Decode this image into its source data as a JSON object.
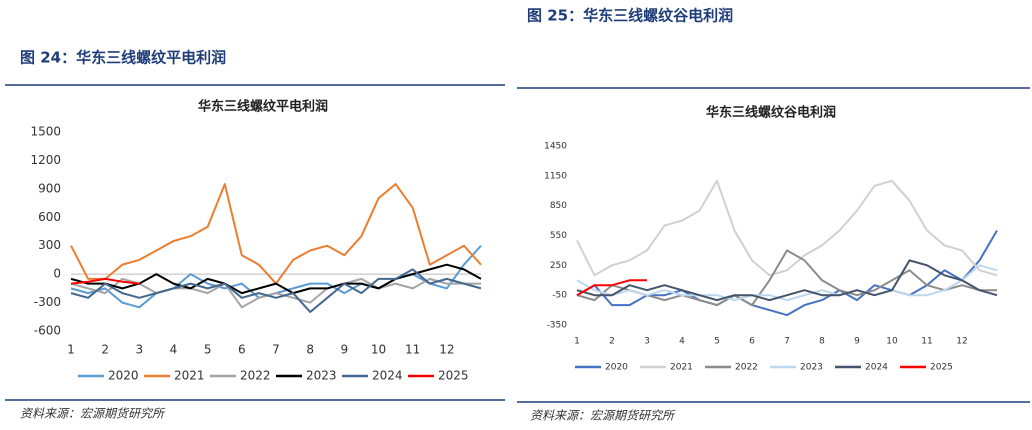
{
  "figures": [
    {
      "caption": "图 24：华东三线螺纹平电利润",
      "source": "资料来源：宏源期货研究所"
    },
    {
      "caption": "图 25：华东三线螺纹谷电利润",
      "source": "资料来源：宏源期货研究所"
    }
  ],
  "chart_data": [
    {
      "type": "line",
      "title": "华东三线螺纹平电利润",
      "x": [
        1,
        1.5,
        2,
        2.5,
        3,
        3.5,
        4,
        4.5,
        5,
        5.5,
        6,
        6.5,
        7,
        7.5,
        8,
        8.5,
        9,
        9.5,
        10,
        10.5,
        11,
        11.5,
        12,
        12.5,
        13
      ],
      "xlim": [
        1,
        13
      ],
      "xticks": [
        1,
        2,
        3,
        4,
        5,
        6,
        7,
        8,
        9,
        10,
        11,
        12
      ],
      "ylim": [
        -600,
        1500
      ],
      "yticks": [
        1500,
        1200,
        900,
        600,
        300,
        0,
        -300,
        -600
      ],
      "series": [
        {
          "name": "2020",
          "color": "#5b9bd5",
          "values": [
            -150,
            -200,
            -150,
            -300,
            -350,
            -200,
            -150,
            0,
            -100,
            -150,
            -100,
            -250,
            -200,
            -150,
            -100,
            -100,
            -200,
            -100,
            -150,
            -50,
            0,
            -100,
            -150,
            100,
            300
          ]
        },
        {
          "name": "2021",
          "color": "#ed7d31",
          "values": [
            300,
            -50,
            -50,
            100,
            150,
            250,
            350,
            400,
            500,
            950,
            200,
            100,
            -100,
            150,
            250,
            300,
            200,
            400,
            800,
            950,
            700,
            100,
            200,
            300,
            100
          ]
        },
        {
          "name": "2022",
          "color": "#a5a5a5",
          "values": [
            -100,
            -150,
            -200,
            -50,
            -100,
            -200,
            -150,
            -150,
            -200,
            -100,
            -350,
            -250,
            -200,
            -250,
            -300,
            -150,
            -100,
            -50,
            -150,
            -100,
            -150,
            -50,
            -100,
            -100,
            -100
          ]
        },
        {
          "name": "2023",
          "color": "#000000",
          "values": [
            -50,
            -100,
            -100,
            -150,
            -100,
            0,
            -100,
            -150,
            -50,
            -100,
            -200,
            -150,
            -100,
            -200,
            -150,
            -150,
            -100,
            -100,
            -150,
            -50,
            0,
            50,
            100,
            50,
            -50
          ]
        },
        {
          "name": "2024",
          "color": "#44698f",
          "values": [
            -200,
            -250,
            -100,
            -200,
            -250,
            -200,
            -150,
            -100,
            -150,
            -100,
            -250,
            -200,
            -250,
            -200,
            -400,
            -250,
            -100,
            -200,
            -50,
            -50,
            50,
            -100,
            -50,
            -100,
            -150
          ]
        },
        {
          "name": "2025",
          "color": "#ff0000",
          "values": [
            -100,
            -80,
            -50,
            -80,
            -100,
            null,
            null,
            null,
            null,
            null,
            null,
            null,
            null,
            null,
            null,
            null,
            null,
            null,
            null,
            null,
            null,
            null,
            null,
            null,
            null
          ]
        }
      ]
    },
    {
      "type": "line",
      "title": "华东三线螺纹谷电利润",
      "x": [
        1,
        1.5,
        2,
        2.5,
        3,
        3.5,
        4,
        4.5,
        5,
        5.5,
        6,
        6.5,
        7,
        7.5,
        8,
        8.5,
        9,
        9.5,
        10,
        10.5,
        11,
        11.5,
        12,
        12.5,
        13
      ],
      "xlim": [
        1,
        13
      ],
      "xticks": [
        1,
        2,
        3,
        4,
        5,
        6,
        7,
        8,
        9,
        10,
        11,
        12
      ],
      "ylim": [
        -350,
        1450
      ],
      "yticks": [
        1450,
        1150,
        850,
        550,
        250,
        -50,
        -350
      ],
      "series": [
        {
          "name": "2020",
          "color": "#4472c4",
          "values": [
            -50,
            50,
            -150,
            -150,
            -50,
            -50,
            0,
            -100,
            -150,
            -50,
            -150,
            -200,
            -250,
            -150,
            -100,
            0,
            -100,
            50,
            0,
            -50,
            50,
            200,
            100,
            300,
            600
          ]
        },
        {
          "name": "2021",
          "color": "#d0d0d0",
          "values": [
            500,
            150,
            250,
            300,
            400,
            650,
            700,
            800,
            1100,
            600,
            300,
            150,
            200,
            350,
            450,
            600,
            800,
            1050,
            1100,
            900,
            600,
            450,
            400,
            200,
            150
          ]
        },
        {
          "name": "2022",
          "color": "#8c8c8c",
          "values": [
            -50,
            -100,
            50,
            0,
            -50,
            -100,
            -50,
            -100,
            -150,
            -50,
            -150,
            100,
            400,
            300,
            100,
            0,
            -50,
            0,
            100,
            200,
            50,
            0,
            50,
            0,
            0
          ]
        },
        {
          "name": "2023",
          "color": "#bdd7ee",
          "values": [
            100,
            0,
            -50,
            0,
            -50,
            0,
            -50,
            -50,
            -50,
            -100,
            -50,
            -50,
            -100,
            -50,
            0,
            -50,
            0,
            -50,
            0,
            -50,
            -50,
            0,
            100,
            250,
            200
          ]
        },
        {
          "name": "2024",
          "color": "#44546a",
          "values": [
            0,
            -50,
            -50,
            50,
            0,
            50,
            0,
            -50,
            -100,
            -50,
            -50,
            -100,
            -50,
            0,
            -50,
            -50,
            0,
            -50,
            0,
            300,
            250,
            150,
            100,
            0,
            -50
          ]
        },
        {
          "name": "2025",
          "color": "#ff0000",
          "values": [
            -50,
            50,
            50,
            100,
            100,
            null,
            null,
            null,
            null,
            null,
            null,
            null,
            null,
            null,
            null,
            null,
            null,
            null,
            null,
            null,
            null,
            null,
            null,
            null,
            null
          ]
        }
      ]
    }
  ]
}
